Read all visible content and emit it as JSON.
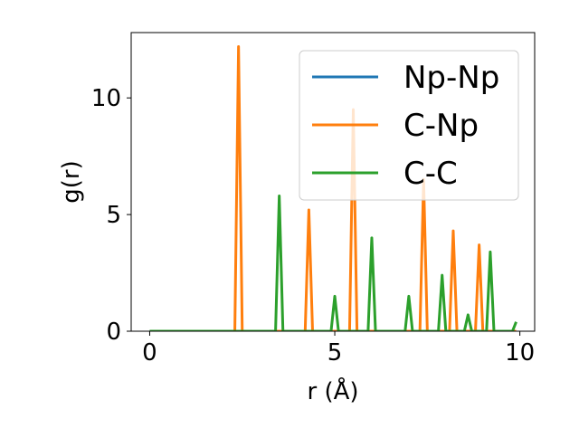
{
  "chart_data": {
    "type": "line",
    "title": "",
    "xlabel": "r (Å)",
    "ylabel": "g(r)",
    "xlim": [
      -0.5,
      10.4
    ],
    "ylim": [
      0,
      12.8
    ],
    "x_ticks": [
      0,
      5,
      10
    ],
    "y_ticks": [
      0,
      5,
      10
    ],
    "x_tick_labels": [
      "0",
      "5",
      "10"
    ],
    "y_tick_labels": [
      "0",
      "5",
      "10"
    ],
    "grid": false,
    "legend_position": "top-right",
    "series": [
      {
        "name": "Np-Np",
        "color": "#1f77b4",
        "x": [
          0,
          9.9
        ],
        "y": [
          0,
          0
        ]
      },
      {
        "name": "C-Np",
        "color": "#ff7f0e",
        "x": [
          0,
          2.3,
          2.4,
          2.5,
          4.2,
          4.3,
          4.4,
          5.4,
          5.5,
          5.6,
          7.3,
          7.4,
          7.5,
          8.1,
          8.2,
          8.3,
          8.8,
          8.9,
          9.0,
          9.9
        ],
        "y": [
          0,
          0,
          12.2,
          0,
          0,
          5.2,
          0,
          0,
          9.5,
          0,
          0,
          6.5,
          0,
          0,
          4.3,
          0,
          0,
          3.7,
          0,
          0
        ]
      },
      {
        "name": "C-C",
        "color": "#2ca02c",
        "x": [
          0,
          3.4,
          3.5,
          3.6,
          4.9,
          5.0,
          5.1,
          5.9,
          6.0,
          6.1,
          6.9,
          7.0,
          7.1,
          7.8,
          7.9,
          8.0,
          8.5,
          8.6,
          8.7,
          9.1,
          9.2,
          9.3,
          9.8,
          9.9
        ],
        "y": [
          0,
          0,
          5.8,
          0,
          0,
          1.5,
          0,
          0,
          4.0,
          0,
          0,
          1.5,
          0,
          0,
          2.4,
          0,
          0,
          0.7,
          0,
          0,
          3.4,
          0,
          0,
          0.4
        ]
      }
    ]
  }
}
